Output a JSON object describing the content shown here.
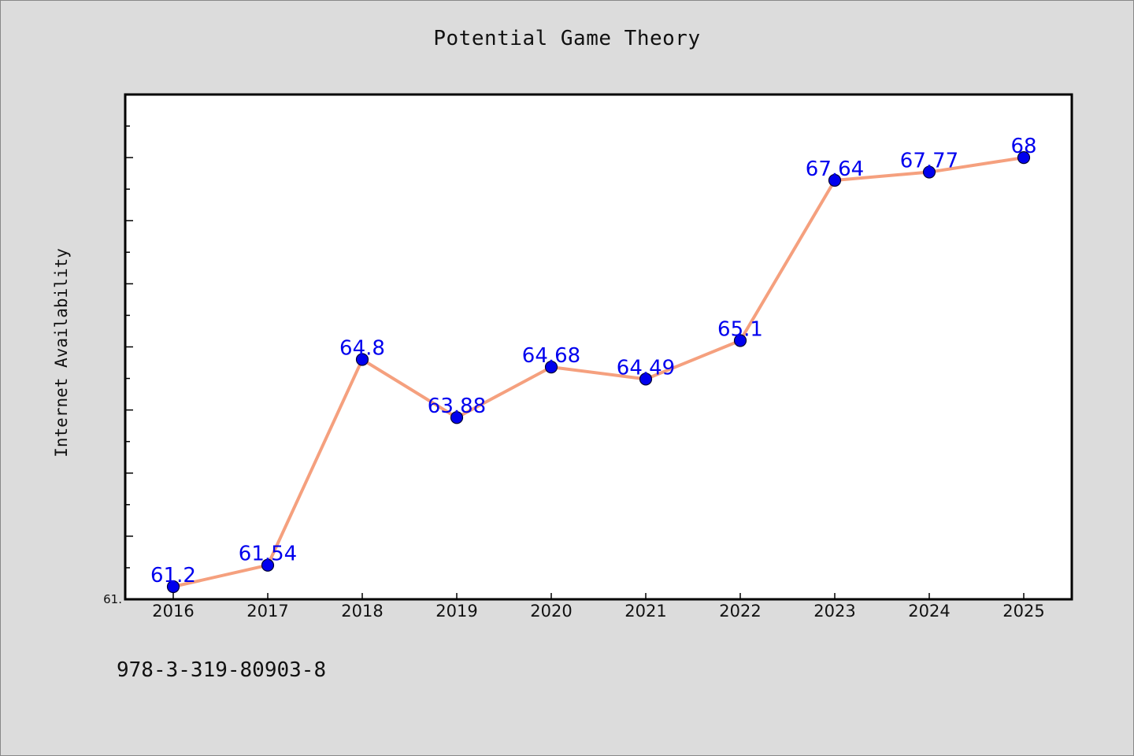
{
  "chart_data": {
    "type": "line",
    "title": "Potential Game Theory",
    "xlabel": "",
    "ylabel": "Internet Availability",
    "categories": [
      "2016",
      "2017",
      "2018",
      "2019",
      "2020",
      "2021",
      "2022",
      "2023",
      "2024",
      "2025"
    ],
    "series": [
      {
        "values": [
          61.2,
          61.54,
          64.8,
          63.88,
          64.68,
          64.49,
          65.1,
          67.64,
          67.77,
          68
        ]
      }
    ],
    "data_labels": [
      "61.2",
      "61.54",
      "64.8",
      "63.88",
      "64.68",
      "64.49",
      "65.1",
      "67.64",
      "67.77",
      "68"
    ],
    "y_tick_labels": [
      "61."
    ],
    "ylim": [
      61.0,
      69.0
    ],
    "grid": false,
    "colors": {
      "line": "#f5a07e",
      "marker": "#0000ee",
      "marker_edge": "#000033",
      "label": "#0000ee",
      "background": "#dcdcdc",
      "plot_area": "#ffffff"
    }
  },
  "footer": {
    "code": "978-3-319-80903-8"
  }
}
